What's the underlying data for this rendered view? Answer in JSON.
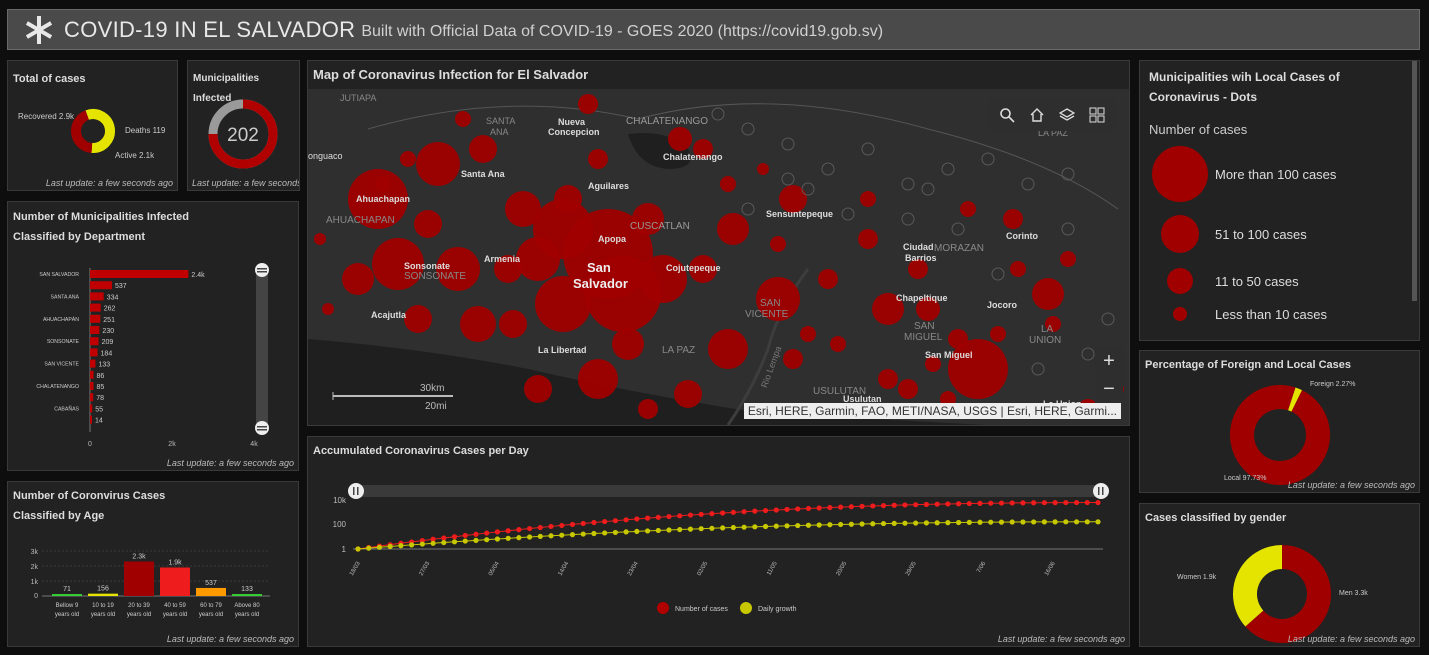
{
  "header": {
    "title": "COVID-19 IN EL SALVADOR",
    "subtitle": "Built with Official Data of COVID-19 - GOES 2020 (https://covid19.gob.sv)"
  },
  "total_cases": {
    "title": "Total of cases",
    "recovered_label": "Recovered 2.9k",
    "deaths_label": "Deaths 119",
    "active_label": "Active 2.1k",
    "update": "Last update: a few seconds ago"
  },
  "municipalities_infected": {
    "title": "Municipalities Infected",
    "value": "202",
    "update": "Last update: a few seconds ago"
  },
  "department_chart": {
    "title_line1": "Number of Municipalities Infected",
    "title_line2": "Classified by Department",
    "update": "Last update: a few seconds ago",
    "axis_ticks": [
      "0",
      "2k",
      "4k"
    ]
  },
  "age_chart": {
    "title_line1": "Number of Coronvirus Cases",
    "title_line2": "Classified by Age",
    "update": "Last update: a few seconds ago",
    "y_ticks": [
      "3k",
      "2k",
      "1k",
      "0"
    ]
  },
  "map": {
    "title": "Map of Coronavirus Infection for El Salvador",
    "scale_km": "30km",
    "scale_mi": "20mi",
    "attribution": "Esri, HERE, Garmin, FAO, METI/NASA, USGS | Esri, HERE, Garmi...",
    "zoom_in": "+",
    "zoom_out": "−",
    "places": [
      {
        "name": "JUTIAPA"
      },
      {
        "name": "SANTA"
      },
      {
        "name": "ANA"
      },
      {
        "name": "Nueva"
      },
      {
        "name": "Concepcion"
      },
      {
        "name": "CHALATENANGO"
      },
      {
        "name": "Chalatenango"
      },
      {
        "name": "LA PAZ"
      },
      {
        "name": "onguaco"
      },
      {
        "name": "Santa Ana"
      },
      {
        "name": "Aguilares"
      },
      {
        "name": "Ahuachapan"
      },
      {
        "name": "AHUACHAPAN"
      },
      {
        "name": "CUSCATLAN"
      },
      {
        "name": "Sensuntepeque"
      },
      {
        "name": "Apopa"
      },
      {
        "name": "Ciudad"
      },
      {
        "name": "Barrios"
      },
      {
        "name": "MORAZAN"
      },
      {
        "name": "Corinto"
      },
      {
        "name": "Armenia"
      },
      {
        "name": "Sonsonate"
      },
      {
        "name": "SONSONATE"
      },
      {
        "name": "San"
      },
      {
        "name": "Salvador"
      },
      {
        "name": "Cojutepeque"
      },
      {
        "name": "Chapeltique"
      },
      {
        "name": "Acajutla"
      },
      {
        "name": "SAN"
      },
      {
        "name": "VICENTE"
      },
      {
        "name": "Jocoro"
      },
      {
        "name": "SAN"
      },
      {
        "name": "MIGUEL"
      },
      {
        "name": "LA"
      },
      {
        "name": "UNION"
      },
      {
        "name": "La Libertad"
      },
      {
        "name": "LA PAZ"
      },
      {
        "name": "San Miguel"
      },
      {
        "name": "USULUTAN"
      },
      {
        "name": "Usulutan"
      },
      {
        "name": "La Union"
      },
      {
        "name": "Rio Lempa"
      }
    ]
  },
  "legend": {
    "title_line1": "Municipalities wih Local Cases of",
    "title_line2": "Coronavirus - Dots",
    "subtitle": "Number of cases",
    "items": [
      {
        "label": "More than 100 cases"
      },
      {
        "label": "51 to 100 cases"
      },
      {
        "label": "11 to 50 cases"
      },
      {
        "label": "Less than 10 cases"
      }
    ]
  },
  "foreign_local": {
    "title": "Percentage of Foreign and Local Cases",
    "foreign_label": "Foreign 2.27%",
    "local_label": "Local 97.73%",
    "update": "Last update: a few seconds ago"
  },
  "gender": {
    "title": "Cases classified by gender",
    "women_label": "Women 1.9k",
    "men_label": "Men 3.3k",
    "update": "Last update: a few seconds ago"
  },
  "daily": {
    "title": "Accumulated Coronavirus Cases per Day",
    "legend_cases": "Number of cases",
    "legend_growth": "Daily growth",
    "update": "Last update: a few seconds ago",
    "y_ticks": [
      "10k",
      "100",
      "1"
    ],
    "x_ticks": [
      "18/03",
      "27/03",
      "05/04",
      "14/04",
      "23/04",
      "02/05",
      "11/05",
      "20/05",
      "29/05",
      "7/06",
      "16/06"
    ]
  },
  "colors": {
    "accent_red": "#a00000",
    "bright_red": "#ee1c1c",
    "yellow": "#e4e400",
    "orange": "#ff9900",
    "green": "#33cc33",
    "gray": "#9a9a9a"
  },
  "chart_data": [
    {
      "type": "pie",
      "title": "Total of cases",
      "categories": [
        "Recovered",
        "Deaths",
        "Active"
      ],
      "values": [
        2900,
        119,
        2100
      ]
    },
    {
      "type": "bar",
      "orientation": "horizontal",
      "title": "Number of Municipalities Infected Classified by Department",
      "categories": [
        "SAN SALVADOR",
        "",
        "SANTA ANA",
        "",
        "AHUACHAPÁN",
        "",
        "SONSONATE",
        "",
        "SAN VICENTE",
        "",
        "CHALATENANGO",
        "",
        "CABAÑAS",
        ""
      ],
      "values": [
        2400,
        537,
        334,
        262,
        251,
        230,
        209,
        184,
        133,
        86,
        85,
        78,
        55,
        14
      ],
      "value_labels": [
        "2.4k",
        "537",
        "334",
        "262",
        "251",
        "230",
        "209",
        "184",
        "133",
        "86",
        "85",
        "78",
        "55",
        "14"
      ],
      "xlim": [
        0,
        4000
      ]
    },
    {
      "type": "bar",
      "title": "Number of Coronvirus Cases Classified by Age",
      "categories": [
        "Bellow 9 years old",
        "10 to 19 years old",
        "20 to 39 years old",
        "40 to 59 years old",
        "60 to 79 years old",
        "Above 80 years old"
      ],
      "values": [
        71,
        156,
        2300,
        1900,
        537,
        133
      ],
      "value_labels": [
        "71",
        "156",
        "2.3k",
        "1.9k",
        "537",
        "133"
      ],
      "colors": [
        "#33cc33",
        "#e4e400",
        "#a00000",
        "#ee1c1c",
        "#ff9900",
        "#33cc33"
      ],
      "ylim": [
        0,
        3000
      ]
    },
    {
      "type": "pie",
      "title": "Percentage of Foreign and Local Cases",
      "categories": [
        "Foreign",
        "Local"
      ],
      "values": [
        2.27,
        97.73
      ]
    },
    {
      "type": "pie",
      "title": "Cases classified by gender",
      "categories": [
        "Women",
        "Men"
      ],
      "values": [
        1900,
        3300
      ]
    },
    {
      "type": "line",
      "title": "Accumulated Coronavirus Cases per Day",
      "y_scale": "log",
      "ylim": [
        1,
        10000
      ],
      "series": [
        {
          "name": "Number of cases",
          "start": "18/03",
          "end": "19/06",
          "start_value": 1,
          "end_value": 5200
        },
        {
          "name": "Daily growth",
          "start": "18/03",
          "end": "19/06",
          "start_value": 1,
          "end_value": 150
        }
      ]
    }
  ]
}
